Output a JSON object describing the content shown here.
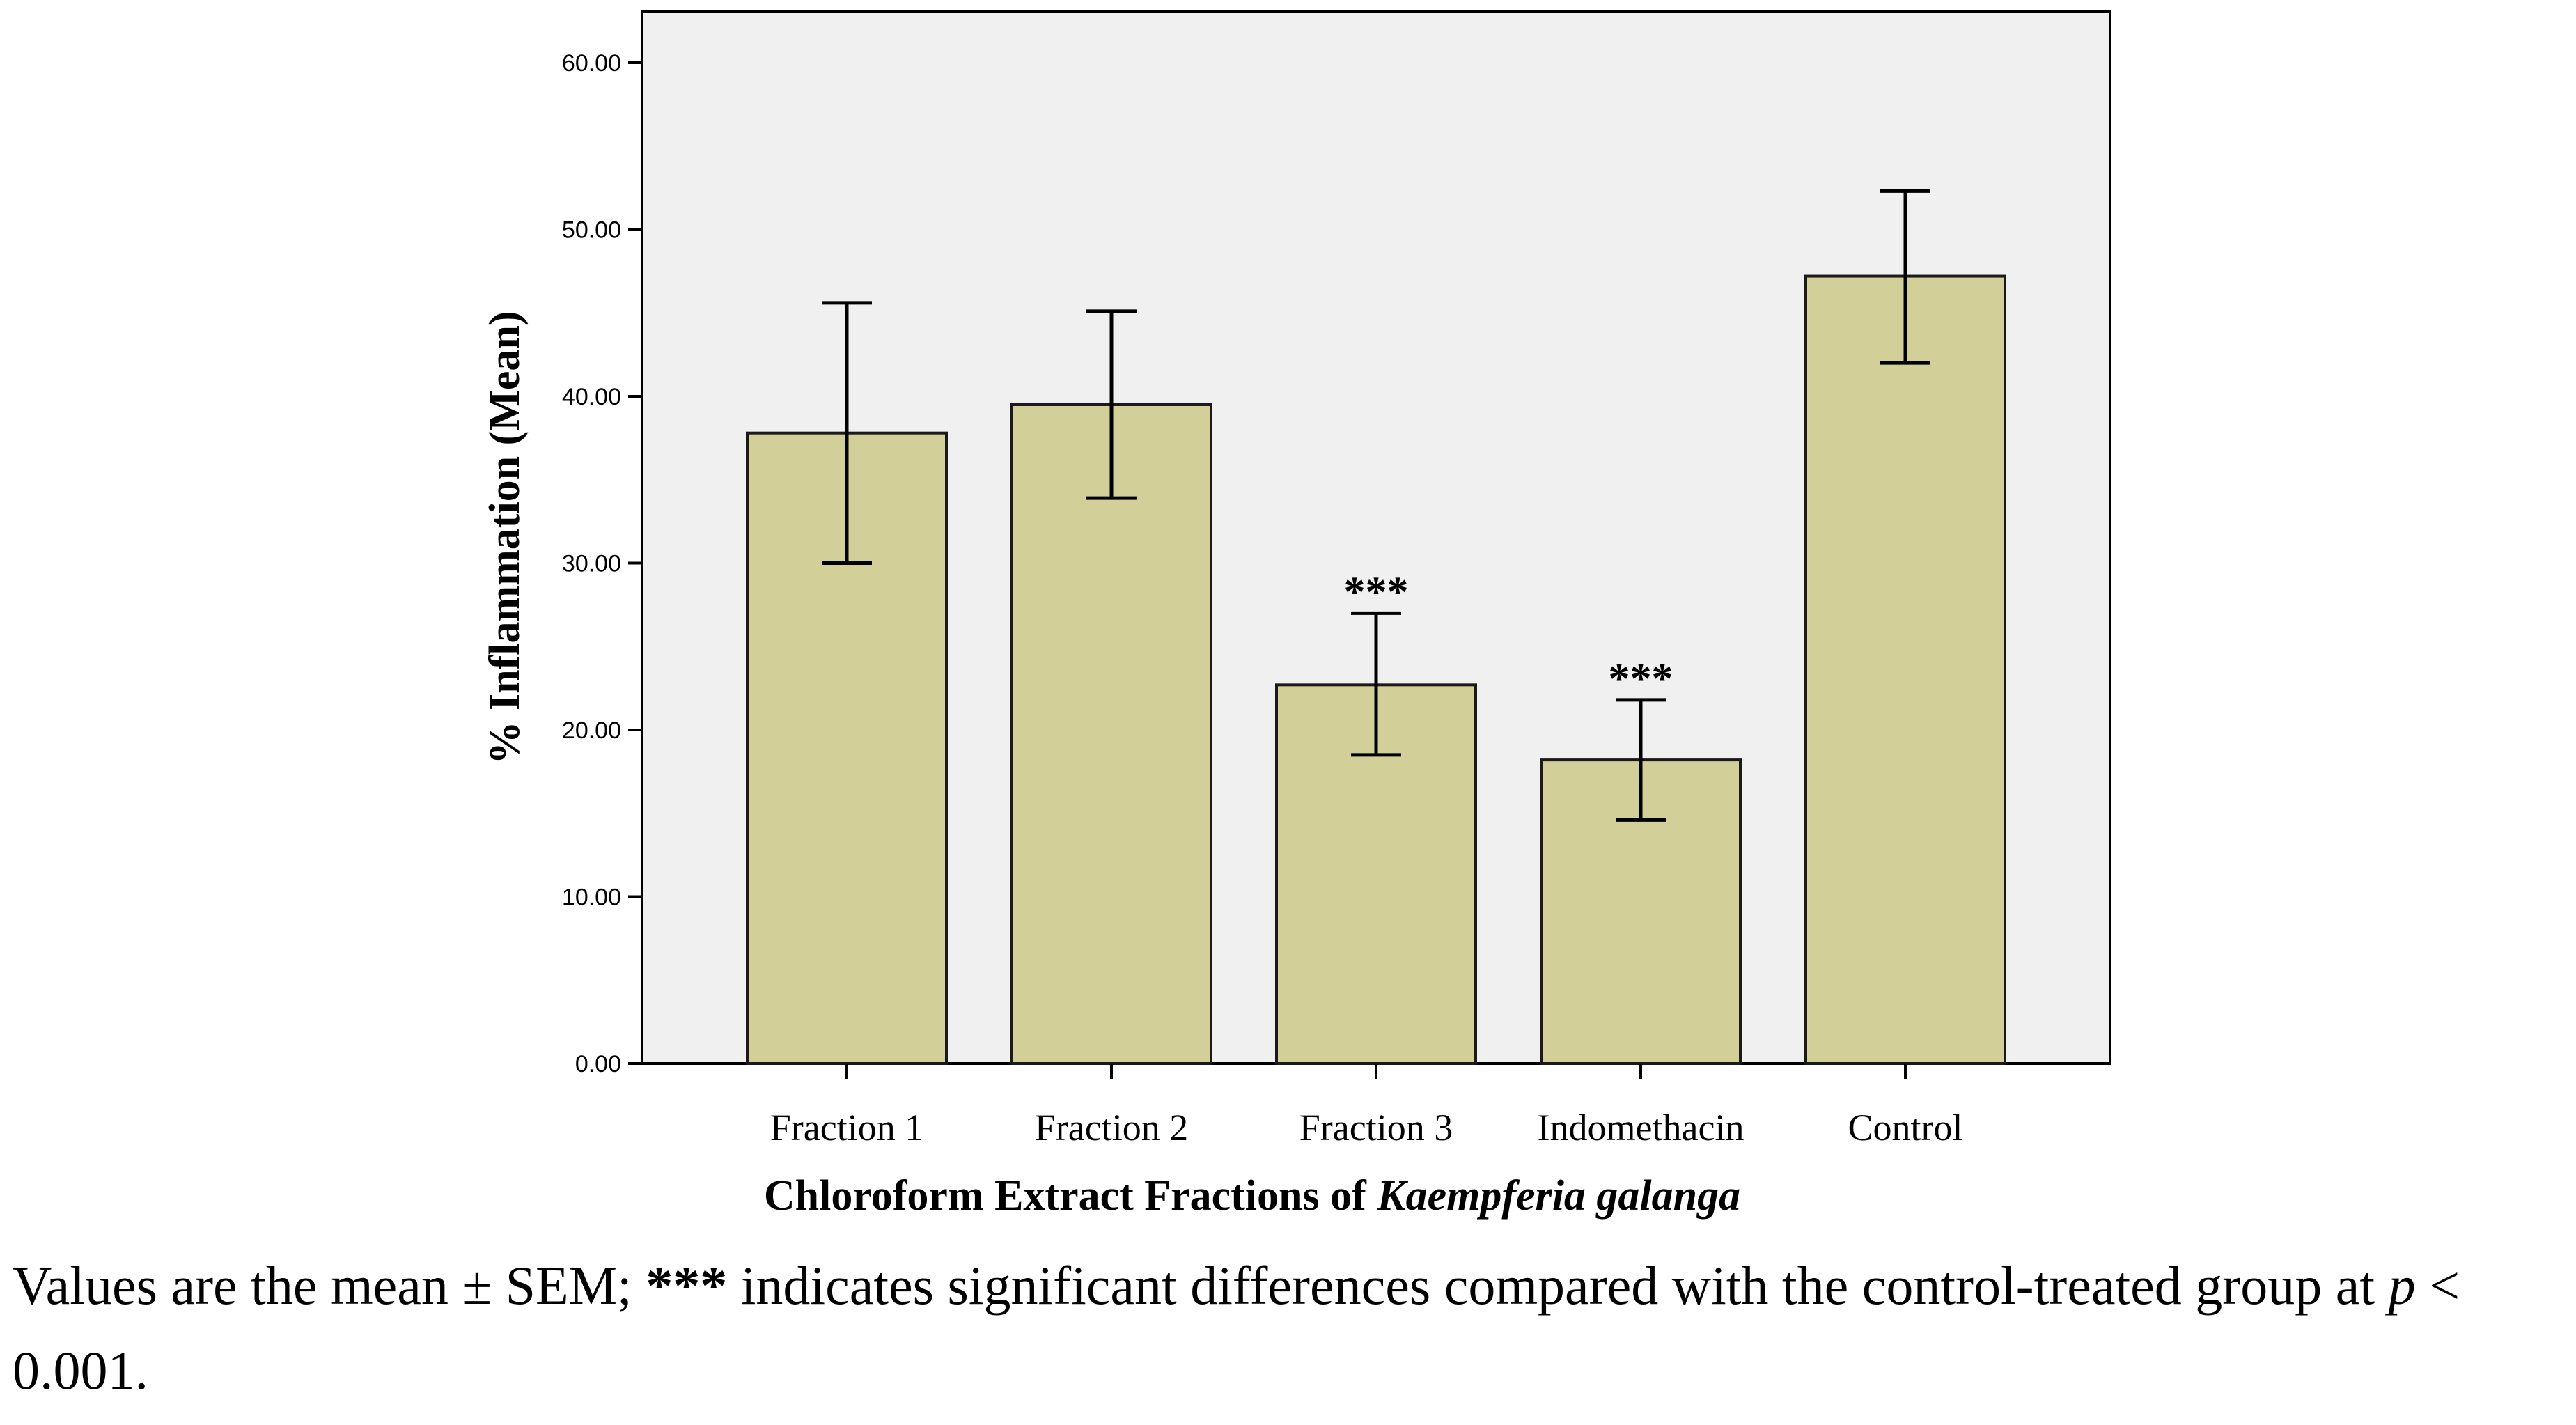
{
  "chart_data": {
    "type": "bar",
    "categories": [
      "Fraction 1",
      "Fraction 2",
      "Fraction 3",
      "Indomethacin",
      "Control"
    ],
    "values": [
      37.8,
      39.5,
      22.7,
      18.2,
      47.2
    ],
    "error_low": [
      30.0,
      33.9,
      18.5,
      14.6,
      42.0
    ],
    "error_high": [
      45.6,
      45.1,
      27.0,
      21.8,
      52.3
    ],
    "annotations": [
      "",
      "",
      "***",
      "***",
      ""
    ],
    "ylim": [
      0,
      63
    ],
    "yticks": [
      "0.00",
      "10.00",
      "20.00",
      "30.00",
      "40.00",
      "50.00",
      "60.00"
    ],
    "ylabel": "% Inflammation (Mean)",
    "xlabel_prefix": "Chloroform Extract Fractions of ",
    "xlabel_italic": "Kaempferia galanga",
    "bar_color": "#d3cf98",
    "plot_bg": "#f0f0f0"
  },
  "caption": {
    "part1": "Values are the mean ± SEM; ",
    "stars": "***",
    "part2": " indicates significant differences compared with the control-treated group at ",
    "p_symbol": "p",
    "part3": " < 0.001."
  }
}
